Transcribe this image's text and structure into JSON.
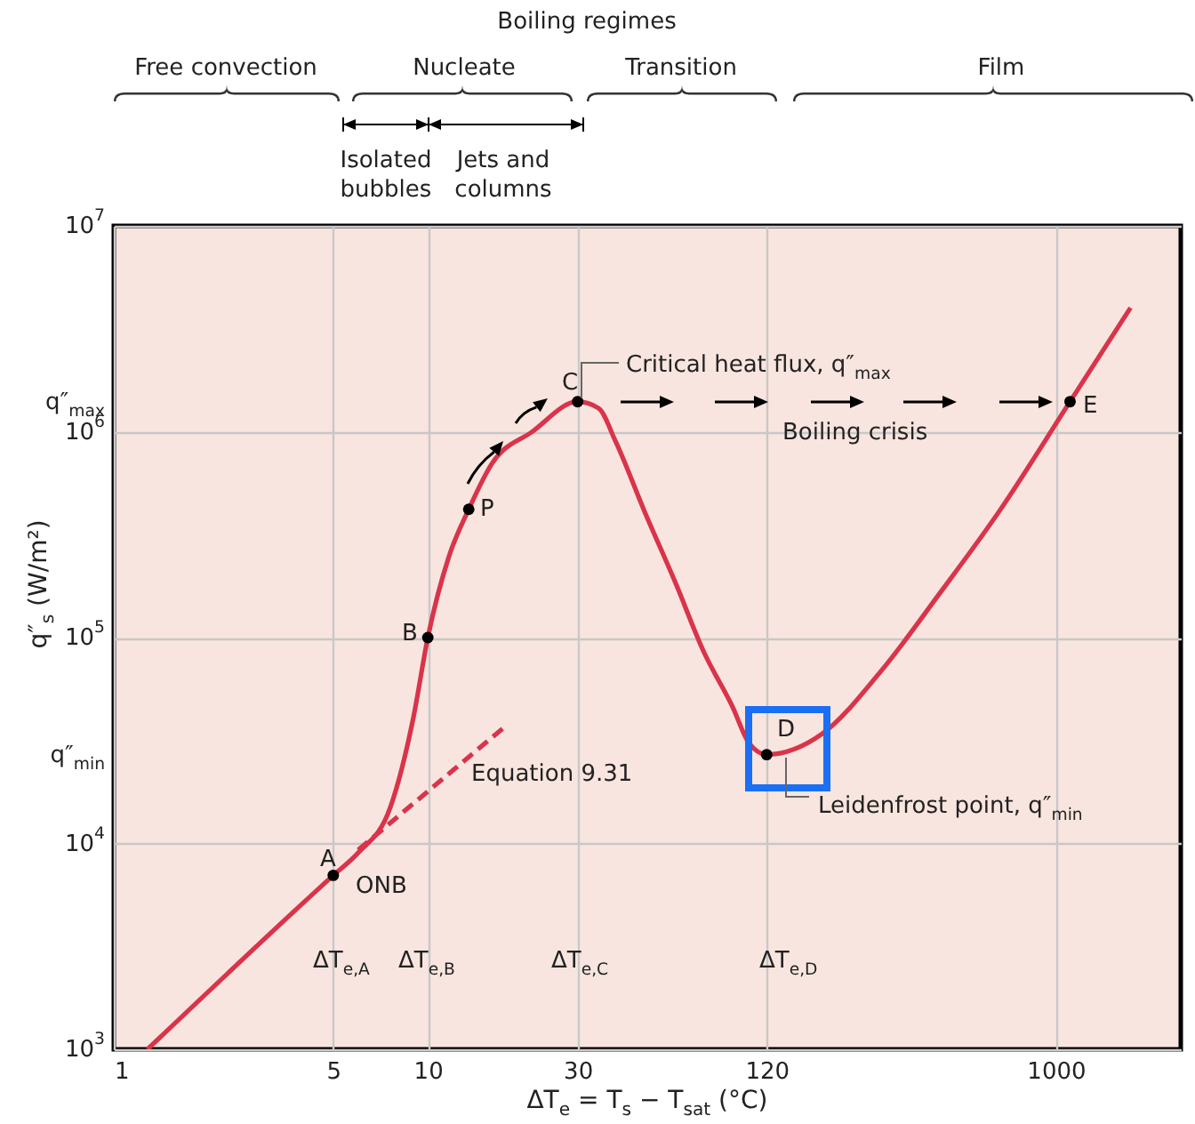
{
  "chart_data": {
    "type": "line",
    "xlabel": "ΔT$_{e}$ = T$_{s}$ − T$_{sat}$ (°C)",
    "ylabel": "q″$_{s}$ (W/m²)",
    "log": "xy",
    "grid": true,
    "xlim": [
      1,
      2500
    ],
    "ylim": [
      1000,
      10000000
    ],
    "xticks": [
      1,
      5,
      10,
      30,
      120,
      1000
    ],
    "yticks": [
      {
        "value": 1000,
        "label": "10$^{3}$"
      },
      {
        "value": 10000,
        "label": "10$^{4}$"
      },
      {
        "value": 100000,
        "label": "10$^{5}$"
      },
      {
        "value": 1000000,
        "label": "10$^{6}$"
      },
      {
        "value": 10000000,
        "label": "10$^{7}$"
      },
      {
        "value": 27000,
        "label": "q″$_{min}$"
      },
      {
        "value": 1400000,
        "label": "q″$_{max}$"
      }
    ],
    "series": [
      {
        "color": "#d9344a",
        "line_style": "solid",
        "x": [
          1.28,
          5,
          6,
          7.6,
          9,
          10,
          11.7,
          13.5,
          16,
          21.5,
          30,
          35,
          39.6,
          49,
          61,
          76,
          93.5,
          105,
          120,
          180,
          278,
          428,
          660,
          1110,
          1730
        ],
        "values": [
          1000,
          7000,
          9000,
          15000,
          41000,
          100000,
          250000,
          420000,
          700000,
          1000000,
          1400000,
          1300000,
          900000,
          410000,
          190000,
          84000,
          46000,
          31000,
          27000,
          34000,
          69000,
          165000,
          410000,
          1400000,
          4000000
        ]
      },
      {
        "type": "line",
        "color": "#d9344a",
        "line_style": "dashed",
        "x": [
          6,
          18
        ],
        "values": [
          9300,
          38000
        ]
      },
      {
        "type": "scatter",
        "color": "#000000",
        "marker": "circle",
        "x": [
          5,
          10,
          13.5,
          30,
          120,
          1110
        ],
        "values": [
          7000,
          100000,
          420000,
          1400000,
          27000,
          1400000
        ]
      }
    ],
    "annotations": [
      "Boiling regimes",
      "Free convection",
      "Nucleate",
      "Transition",
      "Film",
      "Isolated\nbubbles",
      "Jets and\ncolumns",
      "A",
      "ONB",
      "B",
      "P",
      "C",
      "D",
      "E",
      "Critical heat flux, q″$_{max}$",
      "Boiling crisis",
      "Equation 9.31",
      "Leidenfrost point, q″$_{min}$",
      "ΔT$_{e,A}$",
      "ΔT$_{e,B}$",
      "ΔT$_{e,C}$",
      "ΔT$_{e,D}$"
    ]
  }
}
